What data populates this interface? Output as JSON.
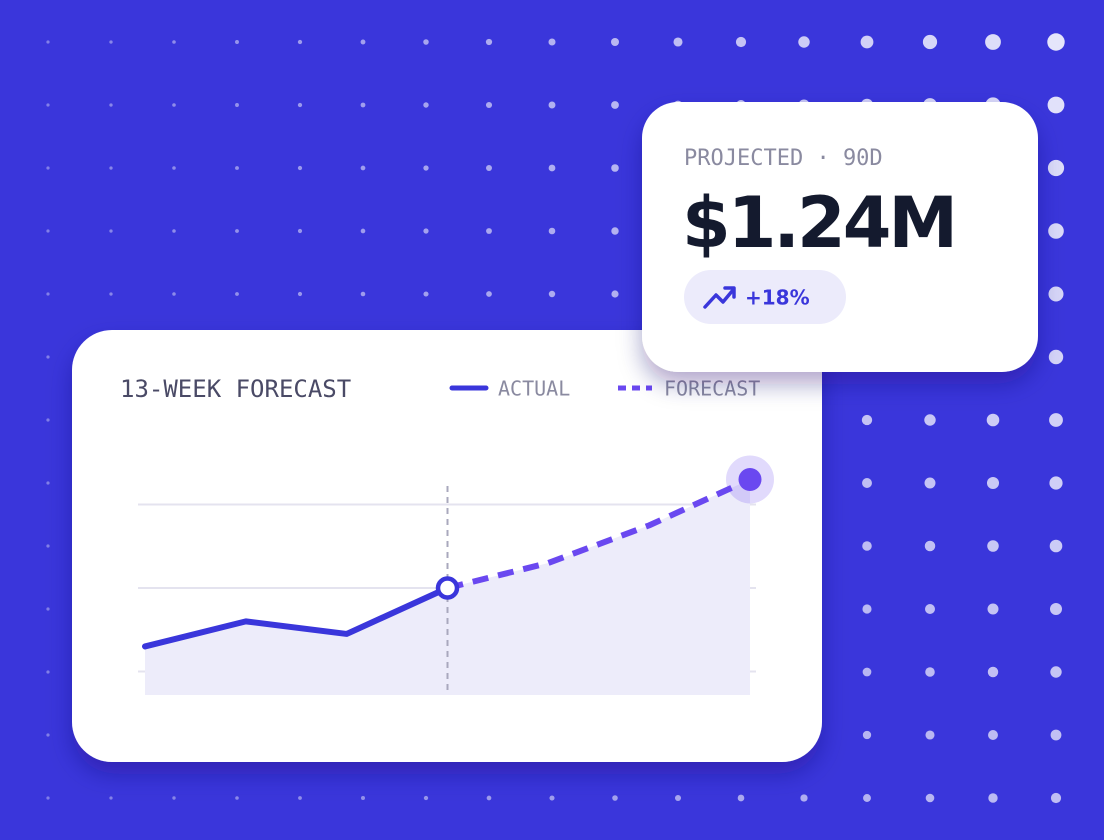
{
  "chart_data": {
    "type": "line",
    "title": "13-WEEK FORECAST",
    "x": [
      0,
      1,
      2,
      3,
      4,
      5,
      6
    ],
    "series": [
      {
        "name": "ACTUAL",
        "color": "#3a36db",
        "dashed": false,
        "values": [
          1.3,
          1.6,
          1.45,
          2,
          null,
          null,
          null
        ]
      },
      {
        "name": "FORECAST",
        "color": "#6a48f0",
        "dashed": true,
        "values": [
          null,
          null,
          null,
          2,
          2.3,
          2.75,
          3.3
        ]
      }
    ],
    "xlim": [
      0,
      6
    ],
    "ylim": [
      0,
      4
    ],
    "yticks": [
      1,
      2,
      3
    ],
    "grid": true,
    "legend": "top-right"
  },
  "kpi": {
    "label": "PROJECTED · 90D",
    "value": "$1.24M",
    "change": "+18%"
  }
}
